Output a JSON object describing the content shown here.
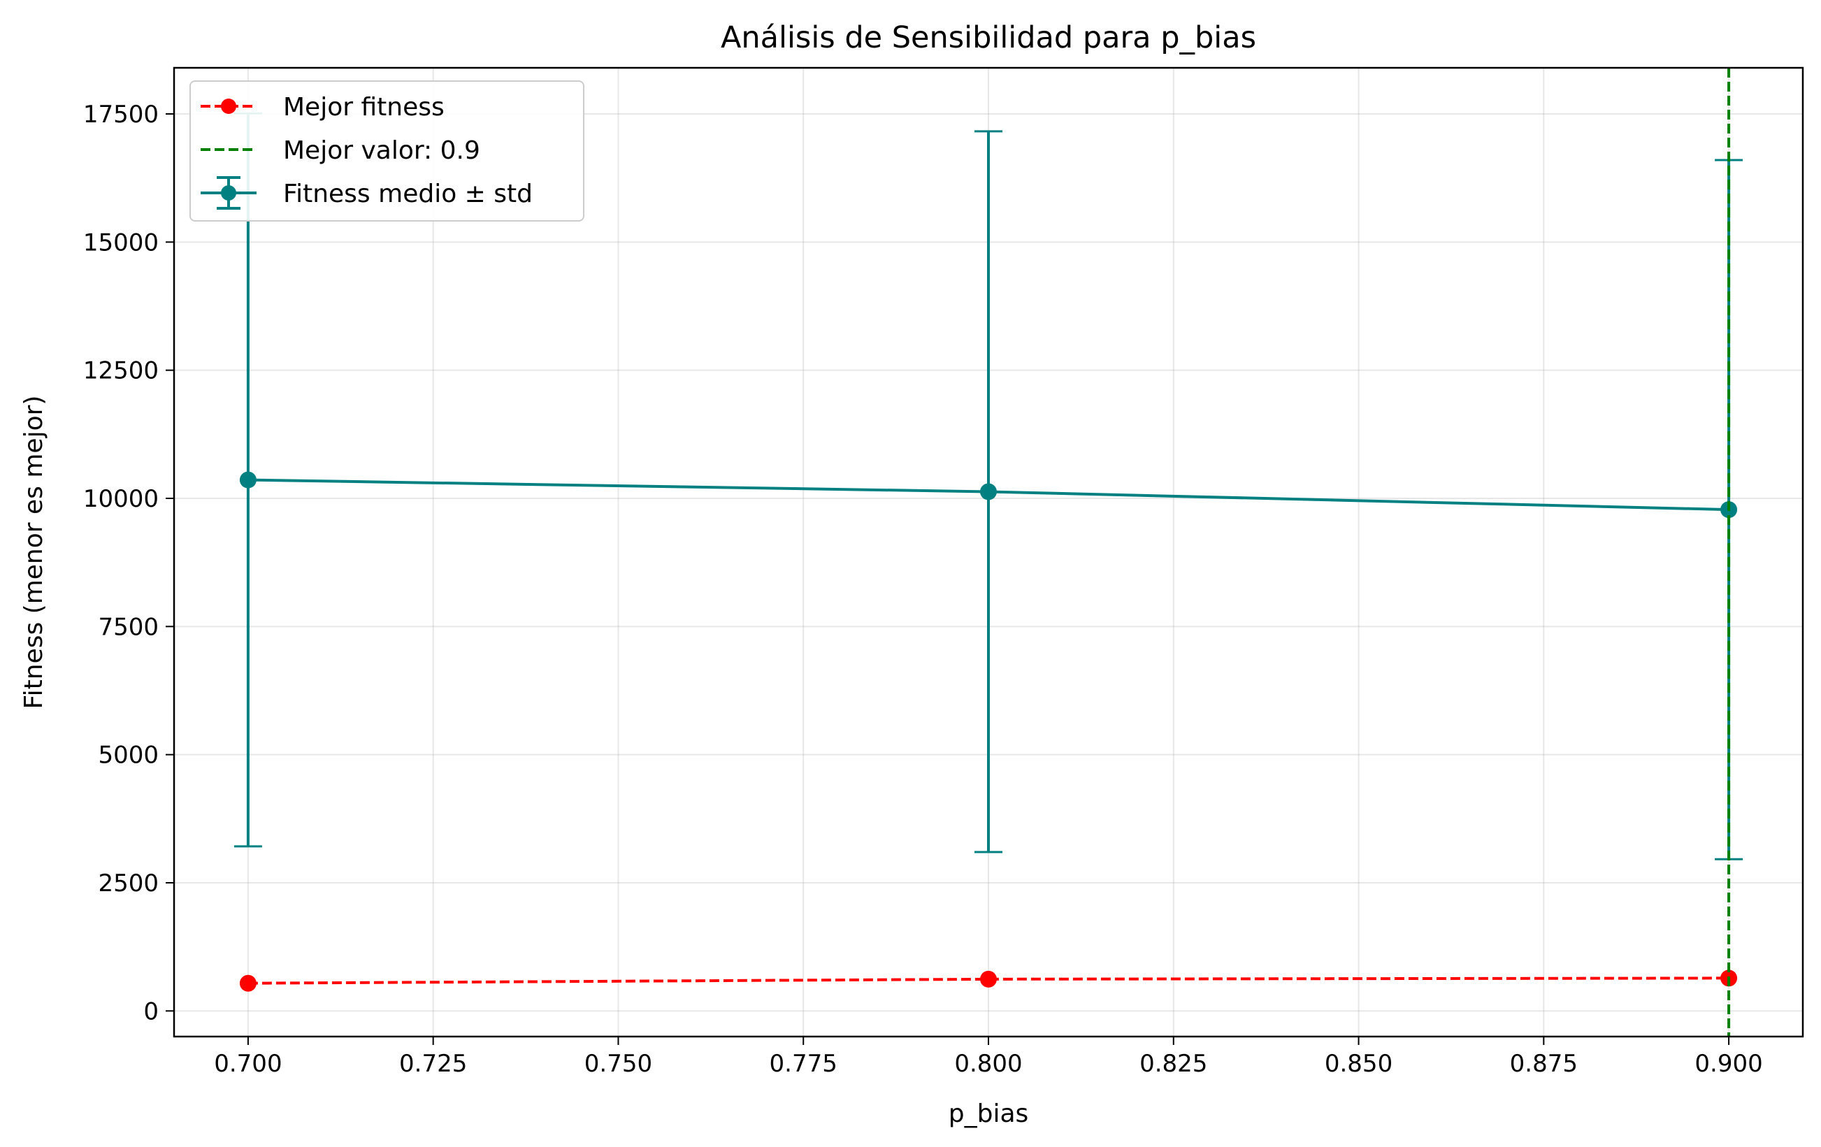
{
  "chart_data": {
    "type": "line",
    "title": "Análisis de Sensibilidad para p_bias",
    "xlabel": "p_bias",
    "ylabel": "Fitness (menor es mejor)",
    "xlim": [
      0.69,
      0.91
    ],
    "ylim": [
      -500,
      18400
    ],
    "x_ticks": [
      "0.700",
      "0.725",
      "0.750",
      "0.775",
      "0.800",
      "0.825",
      "0.850",
      "0.875",
      "0.900"
    ],
    "y_ticks": [
      "0",
      "2500",
      "5000",
      "7500",
      "10000",
      "12500",
      "15000",
      "17500"
    ],
    "grid": true,
    "legend_position": "top-left",
    "series": [
      {
        "name": "Mejor fitness",
        "style": "dashed-with-markers",
        "color": "#ff0000",
        "x": [
          0.7,
          0.8,
          0.9
        ],
        "y": [
          540,
          620,
          640
        ]
      },
      {
        "name": "Fitness medio ± std",
        "style": "solid-with-markers-errorbars",
        "color": "#008080",
        "x": [
          0.7,
          0.8,
          0.9
        ],
        "y": [
          10360,
          10130,
          9780
        ],
        "std": [
          7150,
          7030,
          6820
        ]
      }
    ],
    "vline": {
      "name": "Mejor valor: 0.9",
      "x": 0.9,
      "style": "dashed",
      "color": "#008000"
    },
    "legend": [
      "Mejor fitness",
      "Mejor valor: 0.9",
      "Fitness medio ± std"
    ]
  }
}
